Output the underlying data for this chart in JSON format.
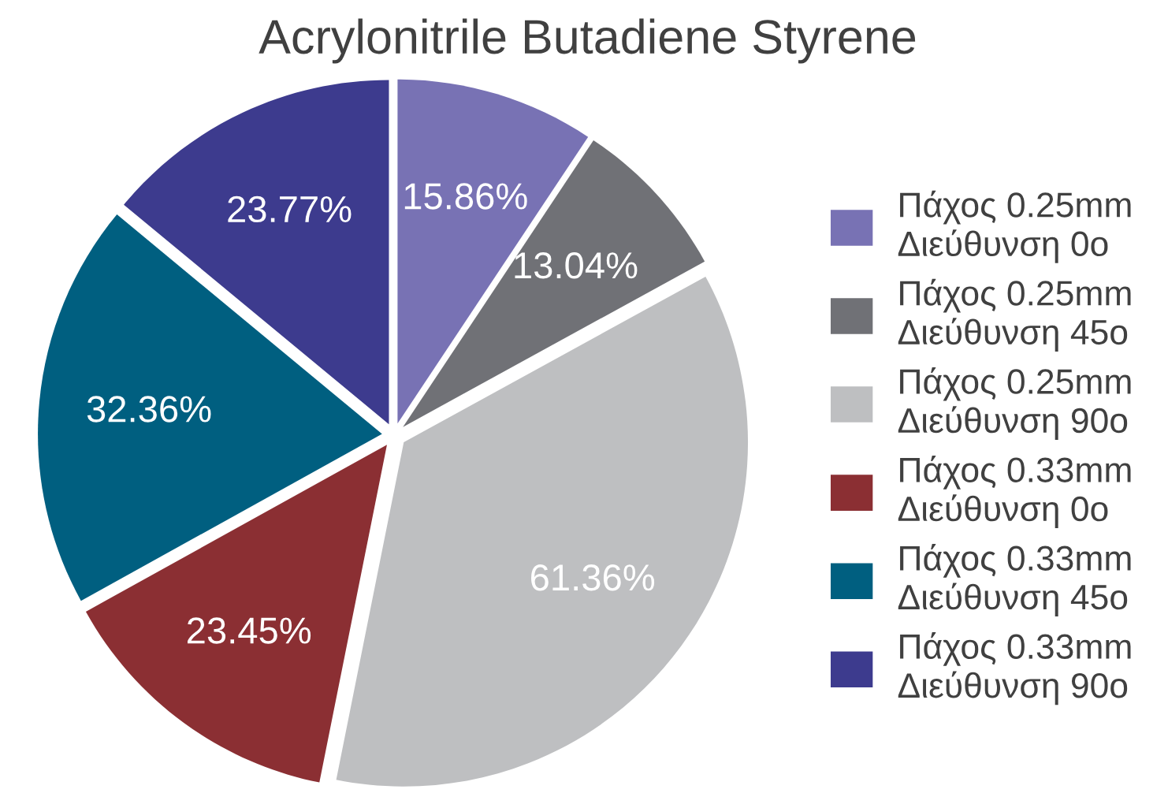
{
  "chart_data": {
    "type": "pie",
    "title": "Acrylonitrile Butadiene Styrene",
    "categories": [
      "Πάχος 0.25mm\nΔιεύθυνση 0o",
      "Πάχος 0.25mm\nΔιεύθυνση 45o",
      "Πάχος 0.25mm\nΔιεύθυνση 90o",
      "Πάχος 0.33mm\nΔιεύθυνση 0o",
      "Πάχος 0.33mm\nΔιεύθυνση 45o",
      "Πάχος 0.33mm\nΔιεύθυνση 90o"
    ],
    "values": [
      15.86,
      13.04,
      61.36,
      23.45,
      32.36,
      23.77
    ],
    "value_labels": [
      "15.86%",
      "13.04%",
      "61.36%",
      "23.45%",
      "32.36%",
      "23.77%"
    ],
    "colors": [
      "#7872b4",
      "#707176",
      "#bebfc1",
      "#8b2f33",
      "#005f80",
      "#3d3b8e"
    ],
    "legend": "right"
  }
}
